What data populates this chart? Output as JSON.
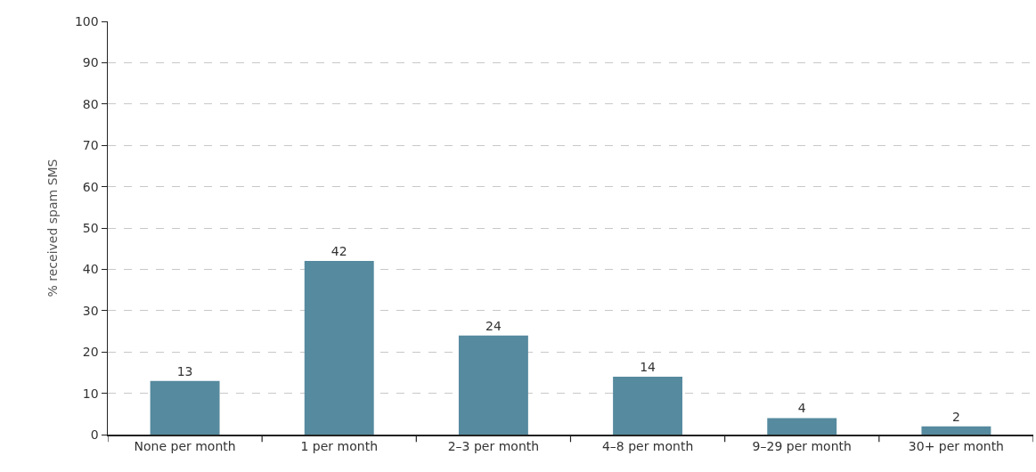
{
  "chart_data": {
    "type": "bar",
    "ylabel": "% received spam SMS",
    "categories": [
      "None per month",
      "1 per month",
      "2–3 per month",
      "4–8 per month",
      "9–29 per month",
      "30+ per month"
    ],
    "values": [
      13,
      42,
      24,
      14,
      4,
      2
    ],
    "color": "#568a9e",
    "ylim": [
      0,
      100
    ],
    "yticks": [
      0,
      10,
      20,
      30,
      40,
      50,
      60,
      70,
      80,
      90,
      100
    ],
    "grid": "y",
    "data_labels": true
  }
}
